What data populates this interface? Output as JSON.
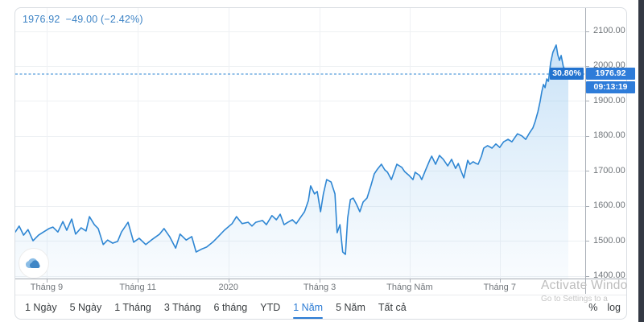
{
  "header": {
    "price": "1976.92",
    "change": "−49.00 (−2.42%)"
  },
  "watermark": {
    "line1": "Activate Windo",
    "line2": "Go to Settings to a"
  },
  "toolbar": {
    "ranges": [
      {
        "label": "1 Ngày",
        "active": false
      },
      {
        "label": "5 Ngày",
        "active": false
      },
      {
        "label": "1 Tháng",
        "active": false
      },
      {
        "label": "3 Tháng",
        "active": false
      },
      {
        "label": "6 tháng",
        "active": false
      },
      {
        "label": "YTD",
        "active": false
      },
      {
        "label": "1 Năm",
        "active": true
      },
      {
        "label": "5 Năm",
        "active": false
      },
      {
        "label": "Tất cả",
        "active": false
      }
    ],
    "scale_buttons": [
      "%",
      "log"
    ]
  },
  "colors": {
    "line": "#2e86d3",
    "badge_blue": "#2e7cd9",
    "badge_dark": "#2373cf",
    "quote_text": "#3e84c6",
    "right_strip": "#343944",
    "fill_top": "rgba(126,186,236,0.50)",
    "fill_bottom": "rgba(170,210,242,0.08)"
  },
  "chart_data": {
    "type": "area",
    "title": "",
    "xlabel": "",
    "ylabel": "",
    "ylim": [
      1400,
      2100
    ],
    "grid": true,
    "y_axis_labels": [
      "2100.00",
      "2000.00",
      "1900.00",
      "1800.00",
      "1700.00",
      "1600.00",
      "1500.00",
      "1400.00"
    ],
    "x_ticks": [
      {
        "label": "Tháng 9",
        "f": 0.055
      },
      {
        "label": "Tháng 11",
        "f": 0.215
      },
      {
        "label": "2020",
        "f": 0.374
      },
      {
        "label": "Tháng 3",
        "f": 0.534
      },
      {
        "label": "Tháng Năm",
        "f": 0.692
      },
      {
        "label": "Tháng 7",
        "f": 0.85
      }
    ],
    "current": {
      "price": 1976.92,
      "price_label": "1976.92",
      "gain_pct": "30.80%",
      "time": "09:13:19",
      "change": "−49.00",
      "change_pct": "−2.42%"
    },
    "series": [
      {
        "name": "price",
        "points": [
          [
            0,
            1525
          ],
          [
            0.007,
            1542
          ],
          [
            0.015,
            1516
          ],
          [
            0.023,
            1532
          ],
          [
            0.032,
            1500
          ],
          [
            0.042,
            1516
          ],
          [
            0.051,
            1525
          ],
          [
            0.061,
            1535
          ],
          [
            0.068,
            1539
          ],
          [
            0.077,
            1525
          ],
          [
            0.086,
            1555
          ],
          [
            0.093,
            1530
          ],
          [
            0.102,
            1562
          ],
          [
            0.109,
            1519
          ],
          [
            0.119,
            1537
          ],
          [
            0.128,
            1528
          ],
          [
            0.134,
            1569
          ],
          [
            0.143,
            1546
          ],
          [
            0.15,
            1535
          ],
          [
            0.159,
            1489
          ],
          [
            0.167,
            1502
          ],
          [
            0.176,
            1493
          ],
          [
            0.185,
            1498
          ],
          [
            0.192,
            1525
          ],
          [
            0.204,
            1553
          ],
          [
            0.214,
            1496
          ],
          [
            0.224,
            1507
          ],
          [
            0.236,
            1489
          ],
          [
            0.246,
            1502
          ],
          [
            0.261,
            1519
          ],
          [
            0.269,
            1535
          ],
          [
            0.279,
            1512
          ],
          [
            0.29,
            1479
          ],
          [
            0.298,
            1519
          ],
          [
            0.309,
            1502
          ],
          [
            0.319,
            1512
          ],
          [
            0.327,
            1468
          ],
          [
            0.338,
            1477
          ],
          [
            0.346,
            1482
          ],
          [
            0.357,
            1496
          ],
          [
            0.367,
            1512
          ],
          [
            0.378,
            1530
          ],
          [
            0.392,
            1549
          ],
          [
            0.4,
            1569
          ],
          [
            0.41,
            1549
          ],
          [
            0.421,
            1553
          ],
          [
            0.428,
            1542
          ],
          [
            0.435,
            1553
          ],
          [
            0.447,
            1558
          ],
          [
            0.454,
            1546
          ],
          [
            0.464,
            1572
          ],
          [
            0.472,
            1560
          ],
          [
            0.479,
            1576
          ],
          [
            0.486,
            1546
          ],
          [
            0.493,
            1553
          ],
          [
            0.501,
            1560
          ],
          [
            0.508,
            1549
          ],
          [
            0.515,
            1565
          ],
          [
            0.523,
            1583
          ],
          [
            0.53,
            1615
          ],
          [
            0.534,
            1657
          ],
          [
            0.541,
            1634
          ],
          [
            0.546,
            1641
          ],
          [
            0.552,
            1583
          ],
          [
            0.557,
            1634
          ],
          [
            0.563,
            1675
          ],
          [
            0.571,
            1668
          ],
          [
            0.578,
            1634
          ],
          [
            0.582,
            1523
          ],
          [
            0.587,
            1546
          ],
          [
            0.592,
            1468
          ],
          [
            0.597,
            1461
          ],
          [
            0.601,
            1565
          ],
          [
            0.606,
            1618
          ],
          [
            0.611,
            1622
          ],
          [
            0.617,
            1604
          ],
          [
            0.623,
            1583
          ],
          [
            0.629,
            1611
          ],
          [
            0.636,
            1622
          ],
          [
            0.643,
            1657
          ],
          [
            0.649,
            1691
          ],
          [
            0.654,
            1703
          ],
          [
            0.662,
            1719
          ],
          [
            0.668,
            1703
          ],
          [
            0.673,
            1696
          ],
          [
            0.68,
            1675
          ],
          [
            0.69,
            1719
          ],
          [
            0.699,
            1710
          ],
          [
            0.704,
            1698
          ],
          [
            0.712,
            1687
          ],
          [
            0.719,
            1675
          ],
          [
            0.723,
            1696
          ],
          [
            0.731,
            1687
          ],
          [
            0.735,
            1675
          ],
          [
            0.742,
            1703
          ],
          [
            0.75,
            1733
          ],
          [
            0.753,
            1742
          ],
          [
            0.76,
            1719
          ],
          [
            0.767,
            1744
          ],
          [
            0.774,
            1733
          ],
          [
            0.782,
            1714
          ],
          [
            0.789,
            1733
          ],
          [
            0.796,
            1707
          ],
          [
            0.801,
            1721
          ],
          [
            0.807,
            1696
          ],
          [
            0.811,
            1680
          ],
          [
            0.818,
            1730
          ],
          [
            0.822,
            1719
          ],
          [
            0.828,
            1726
          ],
          [
            0.833,
            1721
          ],
          [
            0.837,
            1719
          ],
          [
            0.843,
            1742
          ],
          [
            0.847,
            1765
          ],
          [
            0.854,
            1772
          ],
          [
            0.862,
            1765
          ],
          [
            0.869,
            1777
          ],
          [
            0.876,
            1767
          ],
          [
            0.883,
            1783
          ],
          [
            0.891,
            1790
          ],
          [
            0.898,
            1783
          ],
          [
            0.908,
            1806
          ],
          [
            0.916,
            1800
          ],
          [
            0.923,
            1790
          ],
          [
            0.93,
            1809
          ],
          [
            0.936,
            1823
          ],
          [
            0.94,
            1841
          ],
          [
            0.945,
            1869
          ],
          [
            0.949,
            1899
          ],
          [
            0.952,
            1926
          ],
          [
            0.955,
            1947
          ],
          [
            0.958,
            1938
          ],
          [
            0.961,
            1963
          ],
          [
            0.964,
            1956
          ],
          [
            0.968,
            2009
          ],
          [
            0.972,
            2039
          ],
          [
            0.978,
            2060
          ],
          [
            0.981,
            2032
          ],
          [
            0.984,
            2016
          ],
          [
            0.987,
            2030
          ],
          [
            0.991,
            1998
          ],
          [
            0.996,
            1984
          ],
          [
            1,
            1976.92
          ]
        ]
      }
    ]
  }
}
